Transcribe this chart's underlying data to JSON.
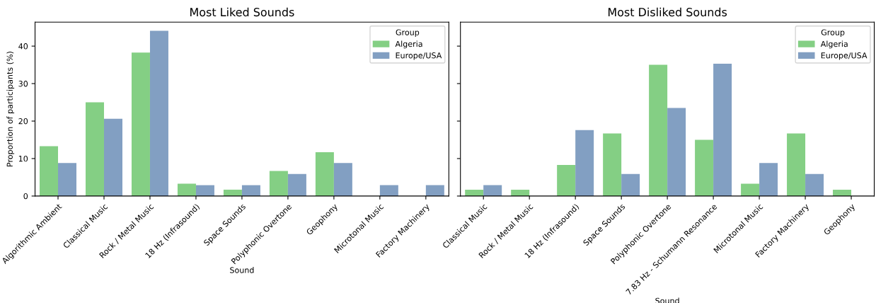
{
  "chart_data": [
    {
      "type": "bar",
      "title": "Most Liked Sounds",
      "xlabel": "Sound",
      "ylabel": "Proportion of participants (%)",
      "legend_title": "Group",
      "legend": "top right",
      "categories": [
        "Algorithmic Ambient",
        "Classical Music",
        "Rock / Metal Music",
        "18 Hz (Infrasound)",
        "Space Sounds",
        "Polyphonic Overtone",
        "Geophony",
        "Microtonal Music",
        "Factory Machinery"
      ],
      "series": [
        {
          "name": "Algeria",
          "color": "#84cf84",
          "values": [
            13.3,
            25.0,
            38.3,
            3.3,
            1.7,
            6.7,
            11.7,
            null,
            null
          ]
        },
        {
          "name": "Europe/USA",
          "color": "#829fc2",
          "values": [
            8.8,
            20.6,
            44.1,
            2.9,
            2.9,
            5.9,
            8.8,
            2.9,
            2.9
          ]
        }
      ],
      "ylim": [
        0,
        46.4
      ],
      "yticks": [
        0,
        10,
        20,
        30,
        40
      ]
    },
    {
      "type": "bar",
      "title": "Most Disliked Sounds",
      "xlabel": "Sound",
      "legend_title": "Group",
      "legend": "top right",
      "tick_labels": "x",
      "categories": [
        "Classical Music",
        "Rock / Metal Music",
        "18 Hz (Infrasound)",
        "Space Sounds",
        "Polyphonic Overtone",
        "7.83 Hz - Schumann Resonance",
        "Microtonal Music",
        "Factory Machinery",
        "Geophony"
      ],
      "series": [
        {
          "name": "Algeria",
          "color": "#84cf84",
          "values": [
            1.7,
            1.7,
            8.3,
            16.7,
            35.0,
            15.0,
            3.3,
            16.7,
            1.7
          ]
        },
        {
          "name": "Europe/USA",
          "color": "#829fc2",
          "values": [
            2.9,
            null,
            17.6,
            5.9,
            23.5,
            35.3,
            8.8,
            5.9,
            null
          ]
        }
      ],
      "ylim": [
        0,
        46.4
      ],
      "yticks": [
        0,
        10,
        20,
        30,
        40
      ]
    }
  ]
}
